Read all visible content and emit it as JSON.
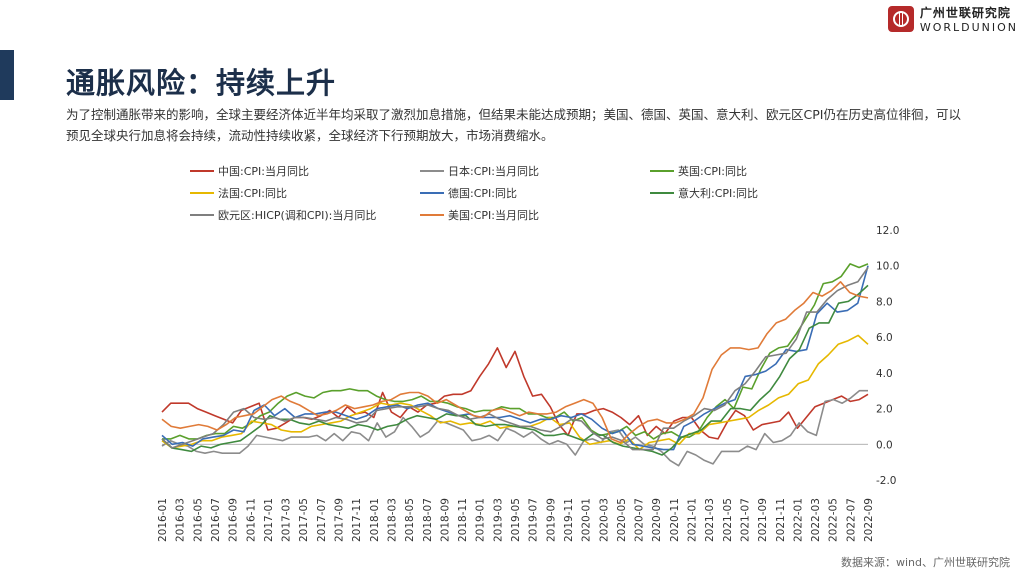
{
  "header": {
    "title": "通胀风险：持续上升",
    "description": "为了控制通胀带来的影响，全球主要经济体近半年均采取了激烈加息措施，但结果未能达成预期；美国、德国、英国、意大利、欧元区CPI仍在历史高位徘徊，可以预见全球央行加息将会持续，流动性持续收紧，全球经济下行预期放大，市场消费缩水。"
  },
  "logo": {
    "name_cn": "广州世联研究院",
    "name_en": "WORLDUNION"
  },
  "source": "数据来源：wind、广州世联研究院",
  "chart_data": {
    "type": "line",
    "title": "",
    "xlabel": "",
    "ylabel": "",
    "ylim": [
      -2.0,
      12.0
    ],
    "yticks": [
      "12.0",
      "10.0",
      "8.0",
      "6.0",
      "4.0",
      "2.0",
      "0.0",
      "-2.0"
    ],
    "legend_position": "top",
    "x_tick_labels": [
      "2016-01",
      "2016-03",
      "2016-05",
      "2016-07",
      "2016-09",
      "2016-11",
      "2017-01",
      "2017-03",
      "2017-05",
      "2017-07",
      "2017-09",
      "2017-11",
      "2018-01",
      "2018-03",
      "2018-05",
      "2018-07",
      "2018-09",
      "2018-11",
      "2019-01",
      "2019-03",
      "2019-05",
      "2019-07",
      "2019-09",
      "2019-11",
      "2020-01",
      "2020-03",
      "2020-05",
      "2020-07",
      "2020-09",
      "2020-11",
      "2021-01",
      "2021-03",
      "2021-05",
      "2021-07",
      "2021-09",
      "2021-11",
      "2022-01",
      "2022-03",
      "2022-05",
      "2022-07",
      "2022-09"
    ],
    "series": [
      {
        "name": "中国:CPI:当月同比",
        "color": "#c0392b",
        "values": [
          1.8,
          2.3,
          2.3,
          2.3,
          2.0,
          1.8,
          1.6,
          1.4,
          1.2,
          1.9,
          2.1,
          2.3,
          0.8,
          0.9,
          1.2,
          1.5,
          1.5,
          1.4,
          1.6,
          1.9,
          1.5,
          2.1,
          1.7,
          1.8,
          1.5,
          2.9,
          1.8,
          1.5,
          2.1,
          1.8,
          2.2,
          2.3,
          2.7,
          2.8,
          2.8,
          3.0,
          3.8,
          4.5,
          5.4,
          4.3,
          5.2,
          3.8,
          2.7,
          2.8,
          2.1,
          1.1,
          0.5,
          1.7,
          1.7,
          1.9,
          2.0,
          1.8,
          1.5,
          1.1,
          1.6,
          0.5,
          1.0,
          0.6,
          1.3,
          1.5,
          1.5,
          0.8,
          0.4,
          0.3,
          1.2,
          1.9,
          1.6,
          0.8,
          1.1,
          1.2,
          1.3,
          1.8,
          0.9,
          1.5,
          2.1,
          2.3,
          2.5,
          2.7,
          2.4,
          2.5,
          2.8
        ],
        "label_name": "中国:CPI:当月同比"
      },
      {
        "name": "日本:CPI:当月同比",
        "color": "#8c8c8c",
        "values": [
          -0.1,
          0.2,
          0.0,
          -0.1,
          -0.4,
          -0.5,
          -0.4,
          -0.5,
          -0.5,
          -0.5,
          -0.1,
          0.5,
          0.4,
          0.3,
          0.2,
          0.4,
          0.4,
          0.4,
          0.5,
          0.2,
          0.6,
          0.2,
          0.7,
          0.6,
          0.2,
          1.2,
          0.4,
          0.7,
          1.5,
          1.0,
          0.4,
          0.7,
          1.3,
          1.2,
          1.0,
          0.8,
          0.2,
          0.3,
          0.5,
          0.2,
          0.9,
          0.7,
          0.4,
          0.7,
          0.3,
          0.0,
          0.2,
          0.0,
          -0.6,
          0.2,
          0.3,
          0.1,
          0.7,
          0.8,
          0.1,
          0.4,
          0.0,
          -0.1,
          -0.4,
          -0.9,
          -1.2,
          -0.4,
          -0.6,
          -0.9,
          -1.1,
          -0.4,
          -0.4,
          -0.4,
          -0.1,
          -0.3,
          0.6,
          0.1,
          0.2,
          0.5,
          1.2,
          0.7,
          0.5,
          2.4,
          2.5,
          2.3,
          2.6,
          3.0,
          3.0
        ],
        "label_name": "日本:CPI:当月同比"
      },
      {
        "name": "英国:CPI:同比",
        "color": "#5aa02c",
        "values": [
          0.3,
          0.3,
          0.5,
          0.3,
          0.3,
          0.5,
          0.6,
          0.6,
          1.0,
          0.9,
          1.2,
          1.6,
          1.8,
          2.3,
          2.7,
          2.9,
          2.7,
          2.6,
          2.9,
          3.0,
          3.0,
          3.1,
          3.0,
          3.0,
          2.7,
          2.5,
          2.4,
          2.4,
          2.5,
          2.7,
          2.4,
          2.4,
          2.3,
          2.1,
          2.0,
          1.8,
          1.9,
          1.9,
          2.1,
          2.0,
          2.0,
          1.7,
          1.7,
          1.5,
          1.5,
          1.8,
          1.3,
          1.5,
          0.8,
          0.5,
          0.6,
          0.7,
          1.0,
          0.5,
          0.7,
          0.3,
          0.6,
          0.7,
          0.4,
          0.4,
          0.7,
          1.5,
          2.1,
          2.5,
          2.0,
          3.2,
          3.1,
          4.2,
          5.1,
          5.4,
          5.5,
          6.2,
          7.0,
          7.8,
          9.0,
          9.1,
          9.4,
          10.1,
          9.9,
          10.1
        ],
        "label_name": "英国:CPI:同比"
      },
      {
        "name": "法国:CPI:同比",
        "color": "#e6b800",
        "values": [
          0.2,
          -0.2,
          -0.1,
          0.0,
          0.2,
          0.2,
          0.4,
          0.5,
          0.6,
          1.3,
          1.2,
          1.1,
          0.8,
          0.7,
          0.7,
          1.0,
          1.1,
          1.2,
          1.3,
          1.6,
          1.8,
          2.0,
          2.3,
          2.2,
          2.3,
          2.2,
          1.9,
          1.6,
          1.2,
          1.3,
          1.1,
          1.2,
          1.1,
          1.3,
          0.9,
          1.0,
          1.0,
          1.0,
          1.2,
          1.5,
          1.1,
          1.2,
          0.4,
          0.0,
          0.1,
          0.2,
          0.0,
          0.3,
          -0.3,
          0.1,
          0.2,
          0.3,
          0.0,
          0.6,
          0.6,
          1.1,
          1.2,
          1.3,
          1.4,
          1.5,
          1.9,
          2.2,
          2.6,
          2.8,
          3.4,
          3.6,
          4.5,
          5.0,
          5.6,
          5.8,
          6.1,
          5.6
        ],
        "label_name": "法国:CPI:同比"
      },
      {
        "name": "德国:CPI:同比",
        "color": "#3a6db5",
        "values": [
          0.5,
          0.0,
          0.1,
          -0.1,
          0.3,
          0.4,
          0.5,
          0.8,
          0.7,
          1.9,
          2.2,
          1.6,
          2.0,
          1.5,
          1.7,
          1.7,
          1.8,
          1.8,
          1.6,
          1.4,
          1.6,
          2.0,
          2.1,
          2.2,
          2.0,
          2.2,
          2.3,
          2.0,
          1.8,
          1.6,
          1.7,
          1.5,
          1.5,
          1.5,
          1.6,
          1.4,
          1.2,
          1.4,
          1.4,
          1.6,
          1.5,
          1.7,
          1.4,
          0.9,
          0.6,
          0.8,
          0.0,
          -0.1,
          -0.2,
          -0.3,
          -0.3,
          1.0,
          1.3,
          1.7,
          2.0,
          2.3,
          2.5,
          3.8,
          3.9,
          4.1,
          4.5,
          5.3,
          5.2,
          5.3,
          7.3,
          7.9,
          7.4,
          7.5,
          7.9,
          10.0
        ],
        "label_name": "德国:CPI:同比"
      },
      {
        "name": "意大利:CPI:同比",
        "color": "#3f8a3f",
        "values": [
          0.3,
          -0.2,
          -0.3,
          -0.4,
          -0.1,
          -0.2,
          0.0,
          0.1,
          0.2,
          0.6,
          1.0,
          1.6,
          1.4,
          1.4,
          1.2,
          1.1,
          1.3,
          1.1,
          1.0,
          0.9,
          1.1,
          1.0,
          0.8,
          1.0,
          1.1,
          1.4,
          1.6,
          1.5,
          1.4,
          1.7,
          1.6,
          1.6,
          1.1,
          1.0,
          1.1,
          1.1,
          1.0,
          0.9,
          0.8,
          0.5,
          0.5,
          0.6,
          0.4,
          0.2,
          0.6,
          0.5,
          0.1,
          -0.1,
          -0.2,
          -0.3,
          -0.4,
          -0.6,
          -0.2,
          0.4,
          0.6,
          0.8,
          1.3,
          1.3,
          2.0,
          2.0,
          1.9,
          2.5,
          3.0,
          3.8,
          4.8,
          5.3,
          6.5,
          6.8,
          6.8,
          7.9,
          8.0,
          8.4,
          8.9
        ],
        "label_name": "意大利:CPI:同比"
      },
      {
        "name": "欧元区:HICP(调和CPI):当月同比",
        "color": "#7f7f7f",
        "values": [
          0.3,
          -0.2,
          0.0,
          0.2,
          0.4,
          0.6,
          1.1,
          1.8,
          2.0,
          1.5,
          1.4,
          1.5,
          1.3,
          1.5,
          1.5,
          1.4,
          1.3,
          1.5,
          1.4,
          1.2,
          1.3,
          1.9,
          2.0,
          2.1,
          2.1,
          2.1,
          2.2,
          2.0,
          1.9,
          1.6,
          1.4,
          1.5,
          1.7,
          1.4,
          1.2,
          1.0,
          1.0,
          0.8,
          0.7,
          1.0,
          1.4,
          1.3,
          0.7,
          0.3,
          0.4,
          0.2,
          -0.3,
          -0.3,
          -0.3,
          0.9,
          0.9,
          1.3,
          1.6,
          2.0,
          1.9,
          2.2,
          3.0,
          3.4,
          4.1,
          4.9,
          5.0,
          5.1,
          5.9,
          7.4,
          7.4,
          8.1,
          8.6,
          8.9,
          9.1,
          9.9
        ],
        "label_name": "欧元区:HICP(调和CPI):当月同比"
      },
      {
        "name": "美国:CPI:当月同比",
        "color": "#e07b39",
        "values": [
          1.4,
          1.0,
          0.9,
          1.0,
          1.1,
          1.0,
          0.8,
          1.1,
          1.5,
          1.6,
          1.7,
          2.1,
          2.5,
          2.7,
          2.4,
          2.2,
          1.9,
          1.6,
          1.7,
          1.9,
          2.2,
          2.0,
          2.1,
          2.2,
          2.4,
          2.5,
          2.8,
          2.9,
          2.9,
          2.7,
          2.3,
          2.5,
          2.2,
          1.9,
          1.6,
          1.5,
          1.9,
          2.0,
          1.8,
          1.6,
          1.8,
          1.7,
          1.7,
          1.8,
          2.1,
          2.3,
          2.5,
          2.3,
          1.5,
          0.3,
          0.1,
          0.6,
          1.0,
          1.3,
          1.4,
          1.2,
          1.2,
          1.4,
          1.7,
          2.6,
          4.2,
          5.0,
          5.4,
          5.4,
          5.3,
          5.4,
          6.2,
          6.8,
          7.0,
          7.5,
          7.9,
          8.5,
          8.3,
          8.6,
          9.1,
          8.5,
          8.3,
          8.2
        ]
      }
    ]
  }
}
